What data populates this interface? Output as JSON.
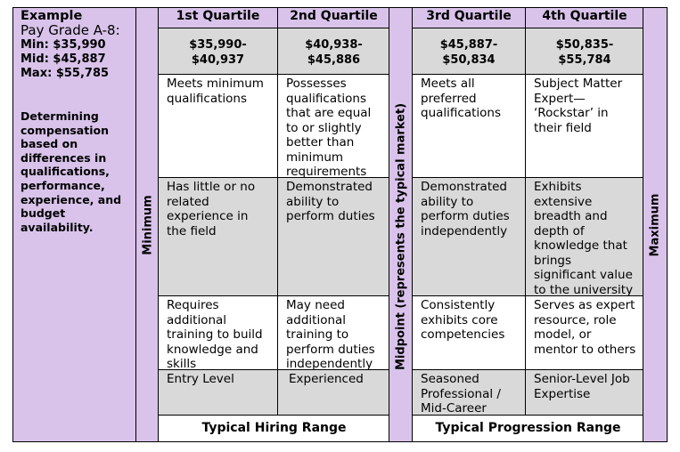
{
  "left_panel": {
    "title_line1": "Example",
    "title_line2": "Pay Grade A-8:",
    "min": "Min: $35,990",
    "mid": "Mid: $45,887",
    "max": "Max: $55,785",
    "description": "Determining\ncompensation\nbased on\ndifferences in\nqualifications,\nperformance,\nexperience, and\nbudget\navailability."
  },
  "side_labels": {
    "minimum": "Minimum",
    "midpoint": "Midpoint (represents the typical market)",
    "maximum": "Maximum"
  },
  "quartiles": [
    {
      "header": "1st Quartile",
      "range": "$35,990-\n$40,937",
      "rows": [
        "Meets minimum\nqualifications",
        "Has little or no\nrelated\nexperience in\nthe field",
        "Requires\nadditional\ntraining to build\nknowledge and\nskills",
        "Entry Level"
      ]
    },
    {
      "header": "2nd Quartile",
      "range": "$40,938-\n$45,886",
      "rows": [
        "Possesses\nqualifications\nthat are equal\nto or slightly\nbetter than\nminimum\nrequirements",
        "Demonstrated\nability to\nperform duties",
        "May need\nadditional\ntraining to\nperform duties\nindependently",
        "Experienced"
      ]
    },
    {
      "header": "3rd Quartile",
      "range": "$45,887-\n$50,834",
      "rows": [
        "Meets all\npreferred\nqualifications",
        "Demonstrated\nability to\nperform duties\nindependently",
        "Consistently\nexhibits core\ncompetencies",
        "Seasoned\nProfessional /\nMid-Career"
      ]
    },
    {
      "header": "4th Quartile",
      "range": "$50,835-\n$55,784",
      "rows": [
        "Subject Matter\nExpert—\n‘Rockstar’ in\ntheir field",
        "Exhibits\nextensive\nbreadth and\ndepth of\nknowledge that\nbrings\nsignificant value\nto the university",
        "Serves as expert\nresource, role\nmodel, or\nmentor to others",
        "Senior-Level Job\nExpertise"
      ]
    }
  ],
  "footer": {
    "hiring": "Typical Hiring Range",
    "progression": "Typical Progression Range"
  },
  "colors": {
    "lavender": "#d9c3ea",
    "gray": "#d9d9d9",
    "border": "#000000"
  }
}
